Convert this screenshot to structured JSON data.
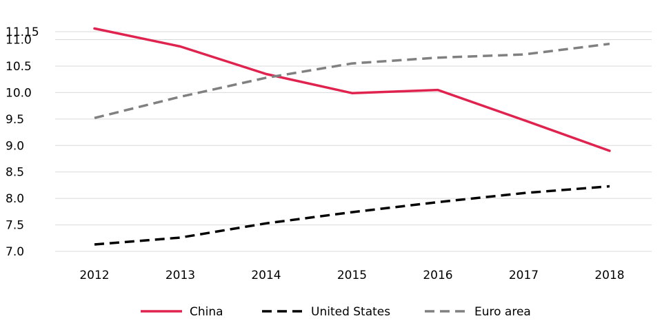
{
  "chart_data": {
    "type": "line",
    "title": "",
    "xlabel": "",
    "ylabel": "",
    "categories": [
      "2012",
      "2013",
      "2014",
      "2015",
      "2016",
      "2017",
      "2018"
    ],
    "ylim": [
      7.0,
      11.15
    ],
    "yticks": [
      "7.0",
      "7.5",
      "8.0",
      "8.5",
      "9.0",
      "9.5",
      "10.0",
      "10.5",
      "11.0",
      "11.15"
    ],
    "ytick_values": [
      7.0,
      7.5,
      8.0,
      8.5,
      9.0,
      9.5,
      10.0,
      10.5,
      11.0,
      11.15
    ],
    "grid": "horizontal",
    "legend_position": "bottom",
    "series": [
      {
        "name": "China",
        "color": "#e0234e",
        "dash": "solid",
        "values": [
          11.21,
          10.87,
          10.35,
          9.99,
          10.05,
          9.48,
          8.9
        ]
      },
      {
        "name": "United States",
        "color": "#000000",
        "dash": "dashed",
        "values": [
          7.13,
          7.26,
          7.53,
          7.74,
          7.93,
          8.1,
          8.23
        ]
      },
      {
        "name": "Euro area",
        "color": "#808080",
        "dash": "dashed",
        "values": [
          9.52,
          9.92,
          10.28,
          10.55,
          10.66,
          10.72,
          10.92
        ]
      }
    ]
  }
}
